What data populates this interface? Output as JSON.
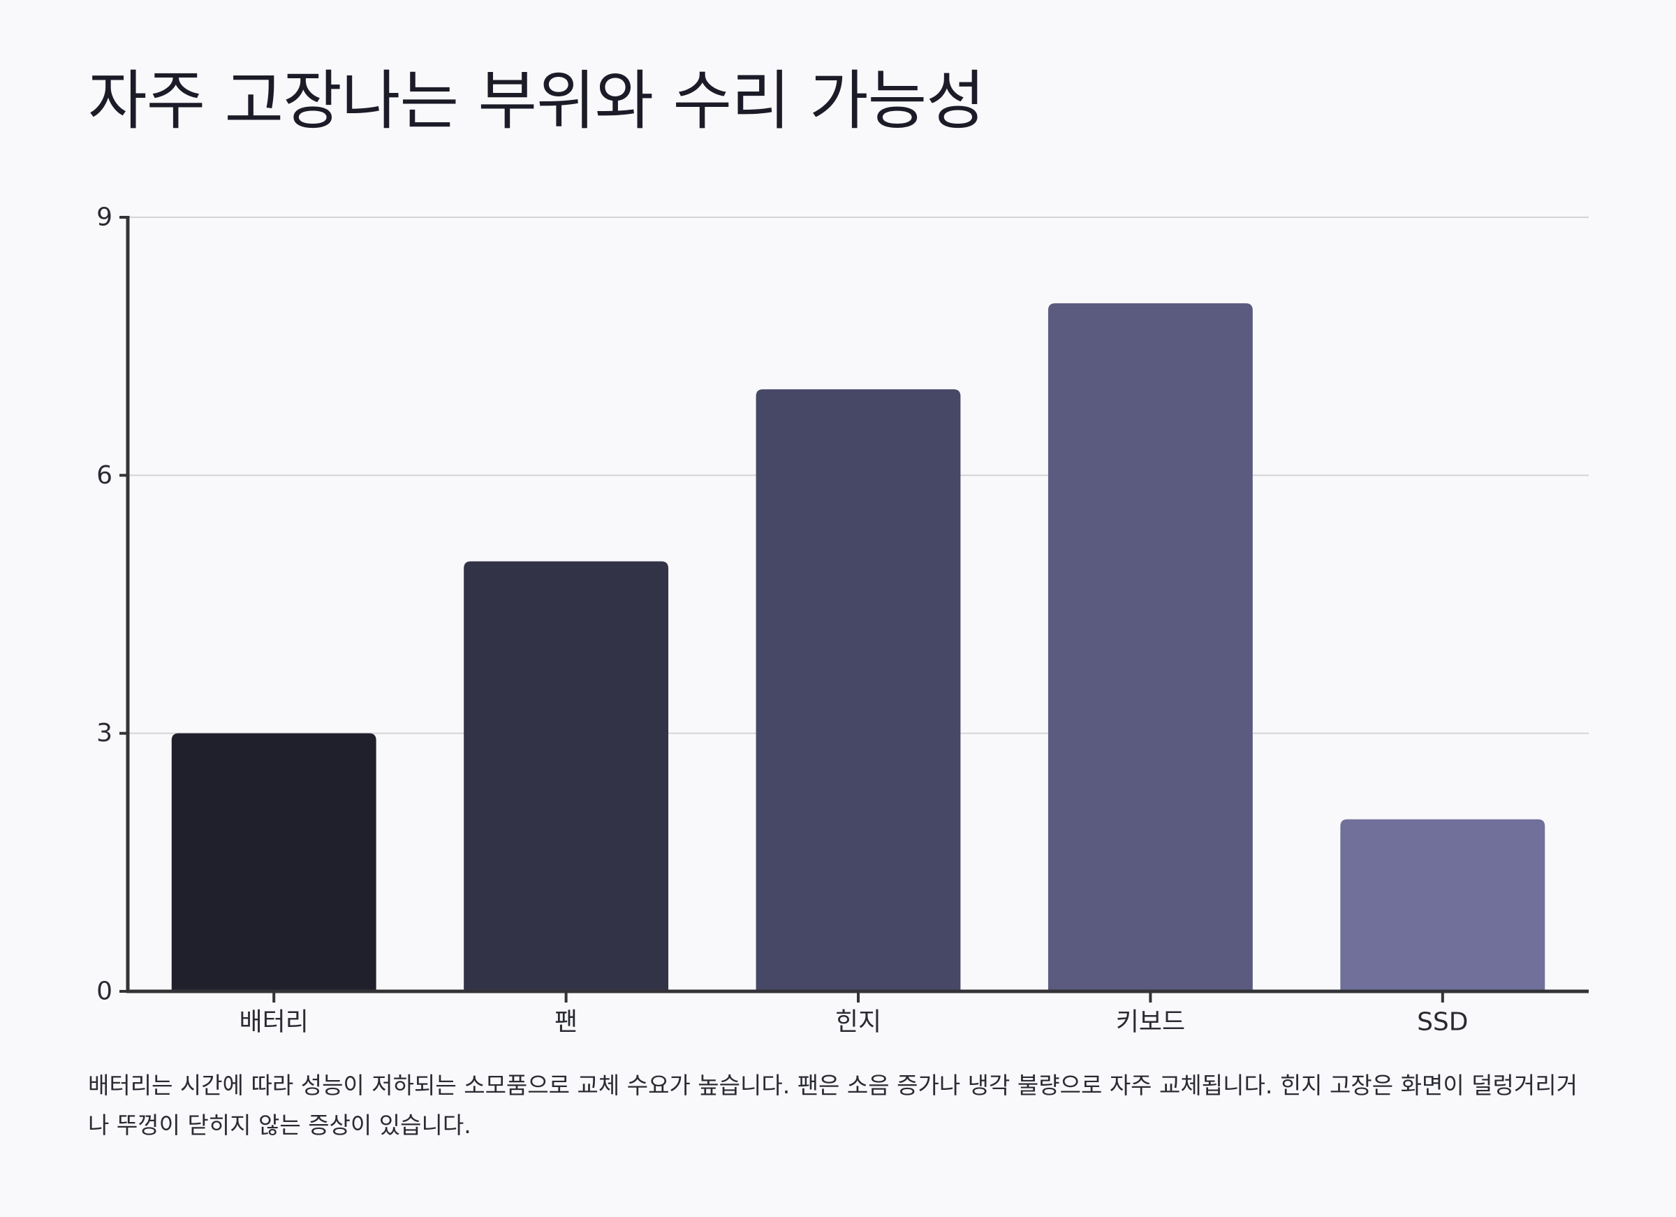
{
  "header": {
    "title": "자주 고장나는 부위와 수리 가능성"
  },
  "caption": {
    "text": "배터리는 시간에 따라 성능이 저하되는 소모품으로 교체 수요가 높습니다. 팬은 소음 증가나 냉각 불량으로 자주 교체됩니다. 힌지 고장은 화면이 덜렁거리거나 뚜껑이 닫히지 않는 증상이 있습니다."
  },
  "chart_data": {
    "type": "bar",
    "title": "자주 고장나는 부위와 수리 가능성",
    "xlabel": "",
    "ylabel": "",
    "categories": [
      "배터리",
      "팬",
      "힌지",
      "키보드",
      "SSD"
    ],
    "values": [
      3,
      5,
      7,
      8,
      2
    ],
    "ylim": [
      0,
      9
    ],
    "yticks": [
      0,
      3,
      6,
      9
    ],
    "grid": true,
    "legend": "none",
    "colors": [
      "#20202c",
      "#333348",
      "#474866",
      "#5b5b80",
      "#70709b"
    ]
  }
}
